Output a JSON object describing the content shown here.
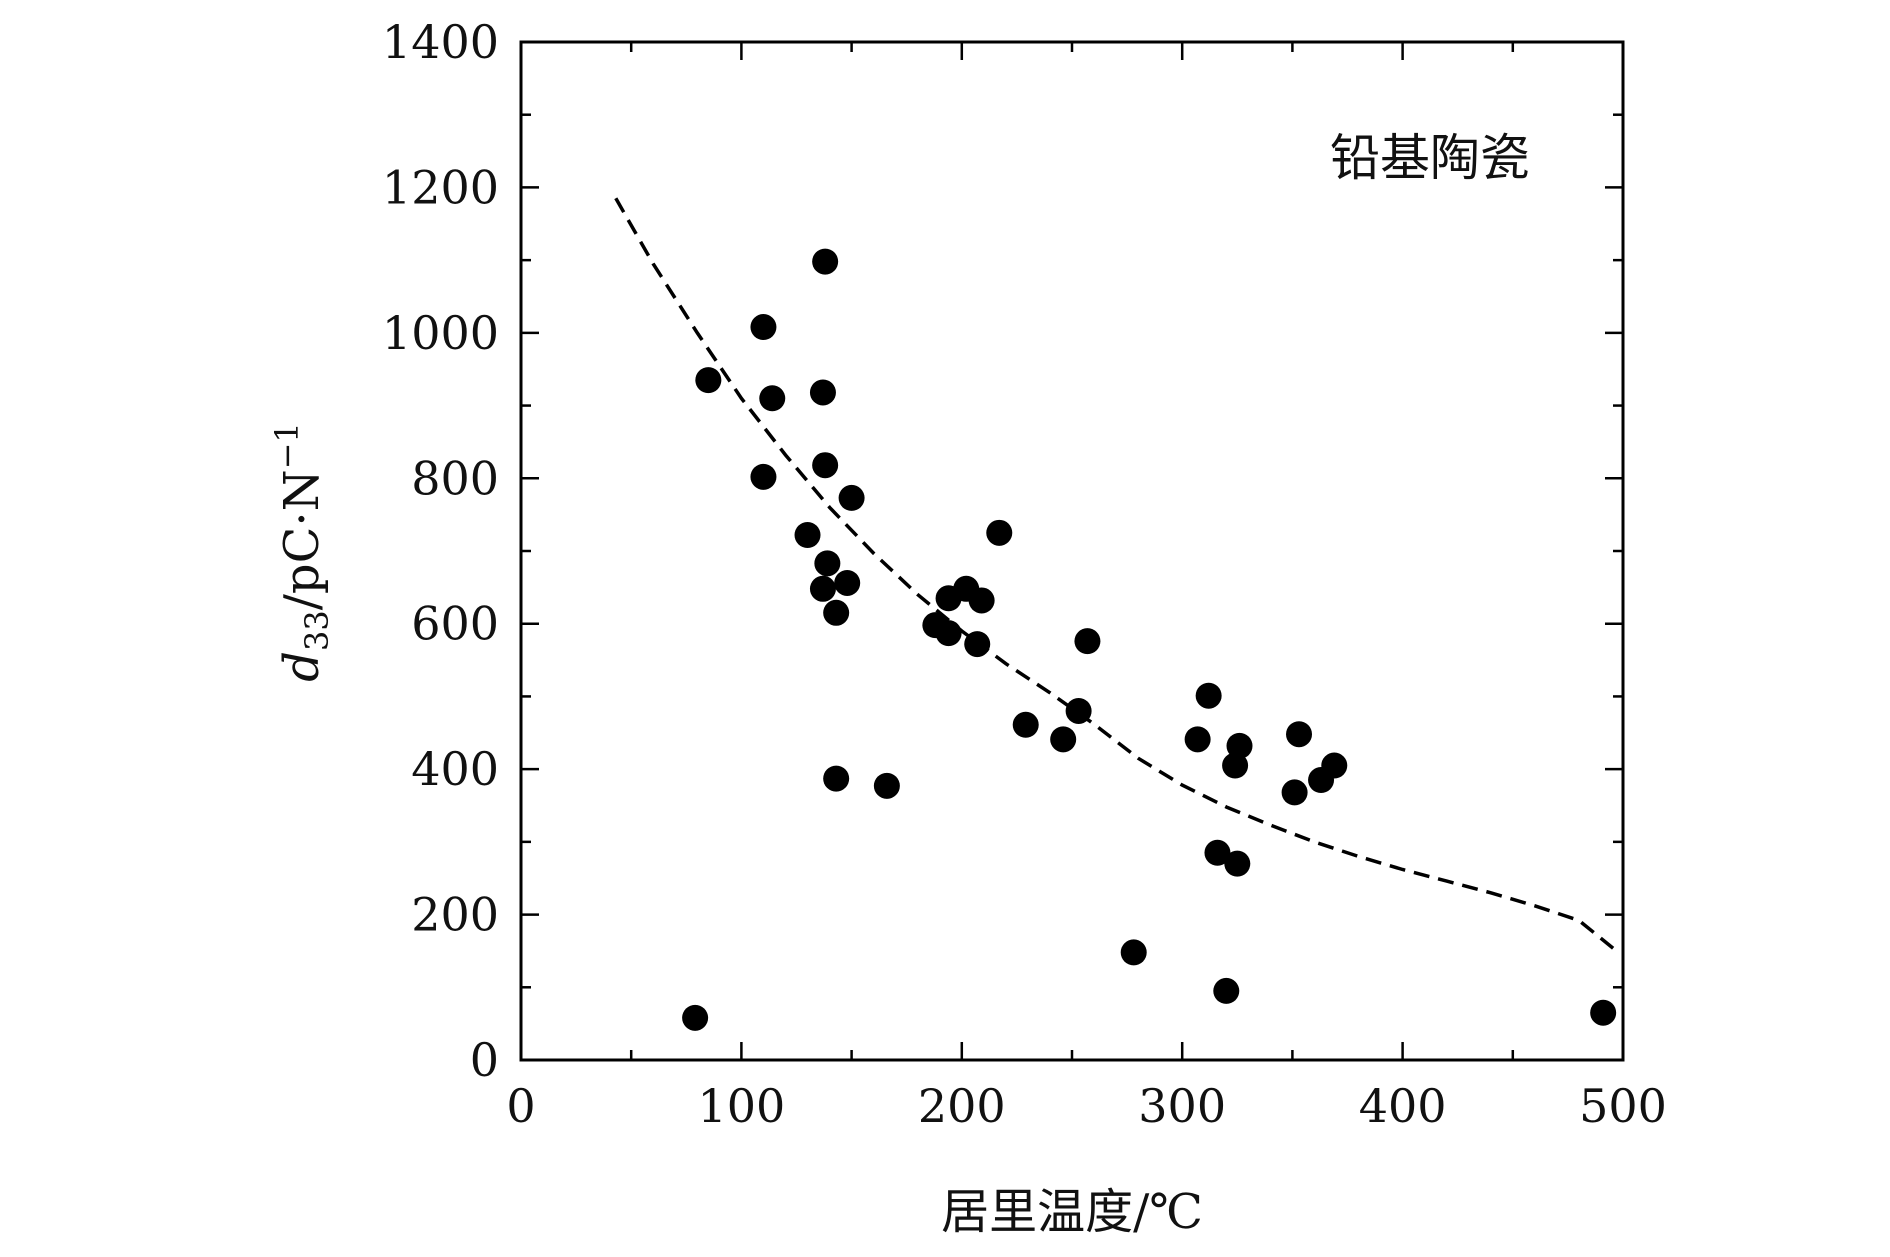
{
  "chart_data": {
    "type": "scatter",
    "title": "",
    "annotation": "铅基陶瓷",
    "xlabel": "居里温度/℃",
    "ylabel_main": "d",
    "ylabel_sub": "33",
    "ylabel_rest": "/pC·N",
    "ylabel_sup": "−1",
    "xlim": [
      0,
      500
    ],
    "ylim": [
      0,
      1400
    ],
    "x_ticks": [
      0,
      100,
      200,
      300,
      400,
      500
    ],
    "x_tick_labels": [
      "0",
      "100",
      "200",
      "300",
      "400",
      "500"
    ],
    "y_ticks": [
      0,
      200,
      400,
      600,
      800,
      1000,
      1200,
      1400
    ],
    "y_tick_labels": [
      "0",
      "200",
      "400",
      "600",
      "800",
      "1000",
      "1200",
      "1400"
    ],
    "grid": false,
    "marker_color": "#000000",
    "series": [
      {
        "kind": "points",
        "points": [
          {
            "x": 79,
            "y": 58
          },
          {
            "x": 85,
            "y": 935
          },
          {
            "x": 110,
            "y": 1008
          },
          {
            "x": 110,
            "y": 802
          },
          {
            "x": 114,
            "y": 910
          },
          {
            "x": 130,
            "y": 722
          },
          {
            "x": 138,
            "y": 1098
          },
          {
            "x": 137,
            "y": 918
          },
          {
            "x": 138,
            "y": 818
          },
          {
            "x": 139,
            "y": 683
          },
          {
            "x": 137,
            "y": 648
          },
          {
            "x": 148,
            "y": 656
          },
          {
            "x": 143,
            "y": 615
          },
          {
            "x": 150,
            "y": 773
          },
          {
            "x": 143,
            "y": 387
          },
          {
            "x": 166,
            "y": 377
          },
          {
            "x": 188,
            "y": 598
          },
          {
            "x": 194,
            "y": 635
          },
          {
            "x": 194,
            "y": 587
          },
          {
            "x": 202,
            "y": 648
          },
          {
            "x": 209,
            "y": 632
          },
          {
            "x": 207,
            "y": 572
          },
          {
            "x": 217,
            "y": 725
          },
          {
            "x": 229,
            "y": 461
          },
          {
            "x": 246,
            "y": 441
          },
          {
            "x": 253,
            "y": 480
          },
          {
            "x": 257,
            "y": 576
          },
          {
            "x": 278,
            "y": 148
          },
          {
            "x": 307,
            "y": 441
          },
          {
            "x": 312,
            "y": 501
          },
          {
            "x": 316,
            "y": 285
          },
          {
            "x": 320,
            "y": 95
          },
          {
            "x": 324,
            "y": 405
          },
          {
            "x": 326,
            "y": 432
          },
          {
            "x": 325,
            "y": 270
          },
          {
            "x": 351,
            "y": 368
          },
          {
            "x": 353,
            "y": 448
          },
          {
            "x": 363,
            "y": 385
          },
          {
            "x": 369,
            "y": 405
          },
          {
            "x": 491,
            "y": 65
          }
        ]
      },
      {
        "kind": "trend",
        "style": "dashed",
        "points": [
          {
            "x": 43,
            "y": 1185
          },
          {
            "x": 60,
            "y": 1095
          },
          {
            "x": 80,
            "y": 1000
          },
          {
            "x": 100,
            "y": 910
          },
          {
            "x": 120,
            "y": 832
          },
          {
            "x": 140,
            "y": 760
          },
          {
            "x": 160,
            "y": 697
          },
          {
            "x": 180,
            "y": 640
          },
          {
            "x": 200,
            "y": 590
          },
          {
            "x": 220,
            "y": 545
          },
          {
            "x": 240,
            "y": 505
          },
          {
            "x": 260,
            "y": 462
          },
          {
            "x": 280,
            "y": 415
          },
          {
            "x": 300,
            "y": 378
          },
          {
            "x": 320,
            "y": 348
          },
          {
            "x": 340,
            "y": 323
          },
          {
            "x": 360,
            "y": 300
          },
          {
            "x": 380,
            "y": 280
          },
          {
            "x": 400,
            "y": 262
          },
          {
            "x": 420,
            "y": 246
          },
          {
            "x": 440,
            "y": 230
          },
          {
            "x": 460,
            "y": 212
          },
          {
            "x": 480,
            "y": 192
          },
          {
            "x": 497,
            "y": 150
          }
        ]
      }
    ]
  }
}
